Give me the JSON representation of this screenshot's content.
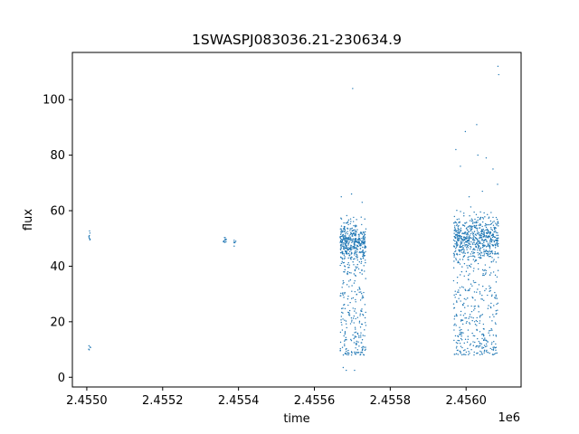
{
  "chart_data": {
    "type": "scatter",
    "title": "1SWASPJ083036.21-230634.9",
    "xlabel": "time",
    "ylabel": "flux",
    "x_offset_label": "1e6",
    "xlim": [
      2454912,
      2456095
    ],
    "ylim": [
      -3.5,
      117
    ],
    "x_ticks": [
      2454950,
      2455150,
      2455350,
      2455550,
      2455750,
      2455950
    ],
    "x_tick_labels": [
      "2.4550",
      "2.4552",
      "2.4554",
      "2.4556",
      "2.4558",
      "2.4560"
    ],
    "y_ticks": [
      0,
      20,
      40,
      60,
      80,
      100
    ],
    "y_tick_labels": [
      "0",
      "20",
      "40",
      "60",
      "80",
      "100"
    ],
    "grid": false,
    "marker_color": "#1f77b4",
    "segments": [
      {
        "x_start": 2454955,
        "x_end": 2454960,
        "y_center": 50,
        "y_spread": 1.2,
        "dip_low": 9,
        "dip_high": 12,
        "dip_fraction": 0.3,
        "count": 14
      },
      {
        "x_start": 2455310,
        "x_end": 2455318,
        "y_center": 49,
        "y_spread": 0.8,
        "dip_low": 0,
        "dip_high": 0,
        "dip_fraction": 0,
        "count": 12
      },
      {
        "x_start": 2455338,
        "x_end": 2455343,
        "y_center": 48.5,
        "y_spread": 0.8,
        "dip_low": 0,
        "dip_high": 0,
        "dip_fraction": 0,
        "count": 8
      },
      {
        "x_start": 2455618,
        "x_end": 2455686,
        "y_center": 49,
        "y_spread": 3.5,
        "dip_low": 8,
        "dip_high": 45,
        "dip_fraction": 0.38,
        "count": 650
      },
      {
        "x_start": 2455917,
        "x_end": 2456035,
        "y_center": 50,
        "y_spread": 4,
        "dip_low": 8,
        "dip_high": 45,
        "dip_fraction": 0.38,
        "count": 950
      }
    ],
    "outliers": [
      [
        2455651,
        104
      ],
      [
        2455621,
        65
      ],
      [
        2455648,
        66
      ],
      [
        2455676,
        63
      ],
      [
        2455626,
        3.5
      ],
      [
        2455634,
        2.5
      ],
      [
        2455656,
        2.5
      ],
      [
        2455948,
        88.5
      ],
      [
        2455923,
        82
      ],
      [
        2455935,
        76
      ],
      [
        2455978,
        91
      ],
      [
        2455981,
        80
      ],
      [
        2456003,
        79
      ],
      [
        2456021,
        75
      ],
      [
        2456034,
        112
      ],
      [
        2456036,
        109
      ],
      [
        2456033,
        69.5
      ],
      [
        2455993,
        67
      ],
      [
        2455958,
        65
      ]
    ]
  }
}
